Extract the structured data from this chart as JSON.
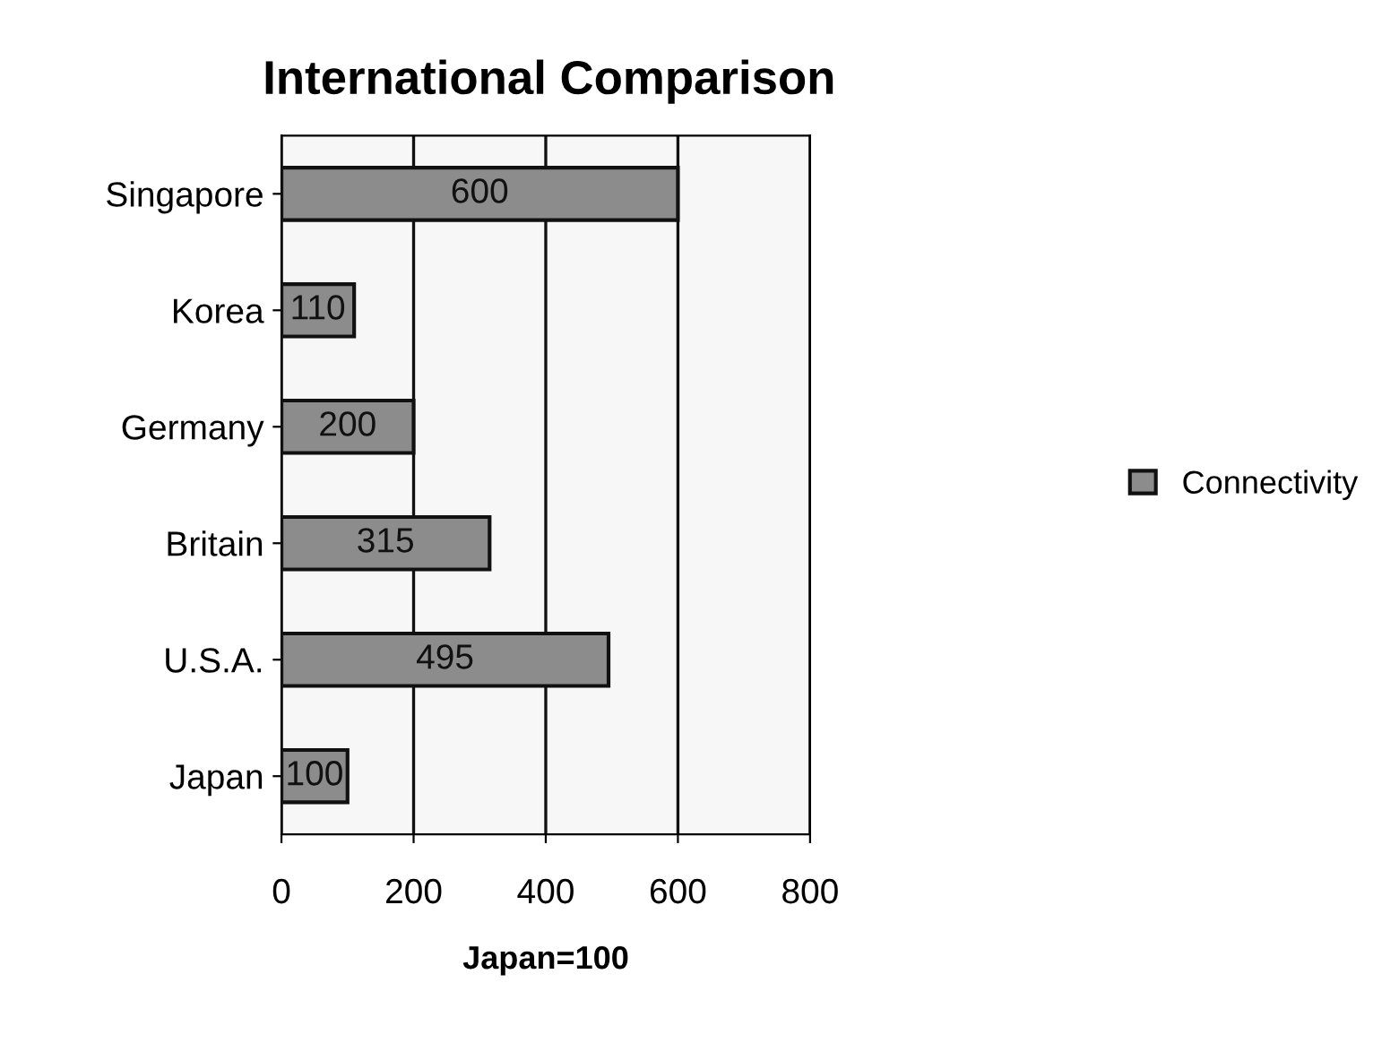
{
  "chart_data": {
    "type": "bar",
    "orientation": "horizontal",
    "title": "International Comparison",
    "xlabel": "Japan=100",
    "categories": [
      "Singapore",
      "Korea",
      "Germany",
      "Britain",
      "U.S.A.",
      "Japan"
    ],
    "series": [
      {
        "name": "Connectivity",
        "color": "#8c8c8c",
        "values": [
          600,
          110,
          200,
          315,
          495,
          100
        ]
      }
    ],
    "xlim": [
      0,
      800
    ],
    "xticks": [
      0,
      200,
      400,
      600,
      800
    ],
    "grid": "x",
    "legend": "right",
    "data_labels": true
  }
}
